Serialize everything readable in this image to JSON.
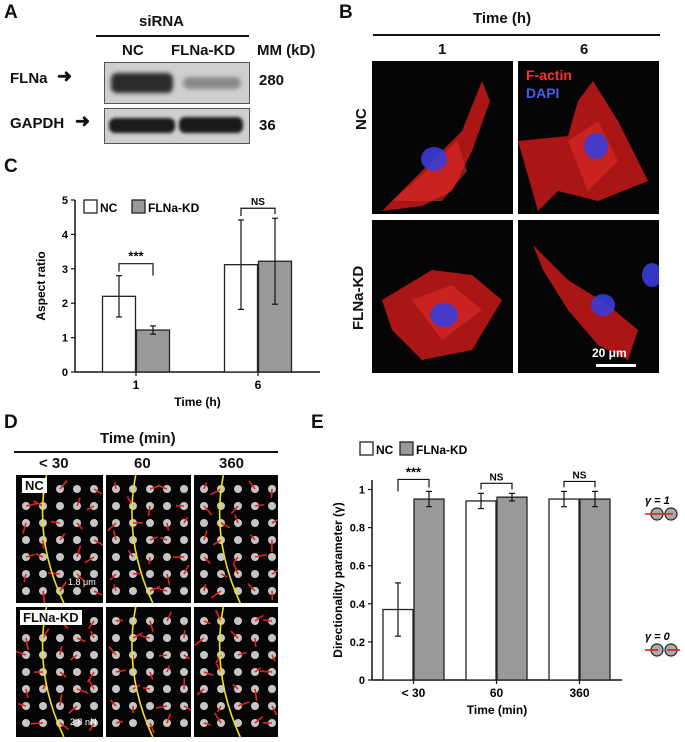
{
  "panelA": {
    "label": "A",
    "sirna": "siRNA",
    "cond": [
      "NC",
      "FLNa-KD"
    ],
    "mm_header": "MM (kD)",
    "rows": [
      {
        "protein": "FLNa",
        "mm": "280"
      },
      {
        "protein": "GAPDH",
        "mm": "36"
      }
    ]
  },
  "panelB": {
    "label": "B",
    "time_header": "Time (h)",
    "times": [
      "1",
      "6"
    ],
    "rows": [
      "NC",
      "FLNa-KD"
    ],
    "legend": [
      "F-actin",
      "DAPI"
    ],
    "scale": "20 μm"
  },
  "panelD": {
    "label": "D",
    "time_header": "Time (min)",
    "times": [
      "< 30",
      "60",
      "360"
    ],
    "rows": [
      "NC",
      "FLNa-KD"
    ],
    "scale_length": "1.8 μm",
    "scale_force": "2.8 nN"
  },
  "panelC": {
    "label": "C",
    "legend": [
      "NC",
      "FLNa-KD"
    ],
    "sig": [
      "***",
      "NS"
    ]
  },
  "panelE": {
    "label": "E",
    "legend": [
      "NC",
      "FLNa-KD"
    ],
    "sig": [
      "***",
      "NS",
      "NS"
    ],
    "gamma1": "γ = 1",
    "gamma0": "γ = 0"
  },
  "chart_data": [
    {
      "type": "bar",
      "panel": "C",
      "categories": [
        "1",
        "6"
      ],
      "series": [
        {
          "name": "NC",
          "values": [
            2.2,
            3.12
          ],
          "errors": [
            0.6,
            1.3
          ]
        },
        {
          "name": "FLNa-KD",
          "values": [
            1.22,
            3.22
          ],
          "errors": [
            0.12,
            1.25
          ]
        }
      ],
      "xlabel": "Time (h)",
      "ylabel": "Aspect ratio",
      "ylim": [
        0,
        5
      ],
      "yticks": [
        "0",
        "1",
        "2",
        "3",
        "4",
        "5"
      ],
      "colors": {
        "NC": "#ffffff",
        "FLNa-KD": "#999999"
      },
      "legend_position": "top-left"
    },
    {
      "type": "bar",
      "panel": "E",
      "categories": [
        "< 30",
        "60",
        "360"
      ],
      "series": [
        {
          "name": "NC",
          "values": [
            0.37,
            0.94,
            0.95
          ],
          "errors": [
            0.14,
            0.04,
            0.04
          ]
        },
        {
          "name": "FLNa-KD",
          "values": [
            0.95,
            0.96,
            0.95
          ],
          "errors": [
            0.04,
            0.02,
            0.04
          ]
        }
      ],
      "xlabel": "Time (min)",
      "ylabel": "Directionality parameter (γ)",
      "ylim": [
        0,
        1.05
      ],
      "yticks": [
        "0",
        "0.2",
        "0.4",
        "0.6",
        "0.8",
        "1"
      ],
      "colors": {
        "NC": "#ffffff",
        "FLNa-KD": "#999999"
      },
      "legend_position": "top-left"
    }
  ]
}
